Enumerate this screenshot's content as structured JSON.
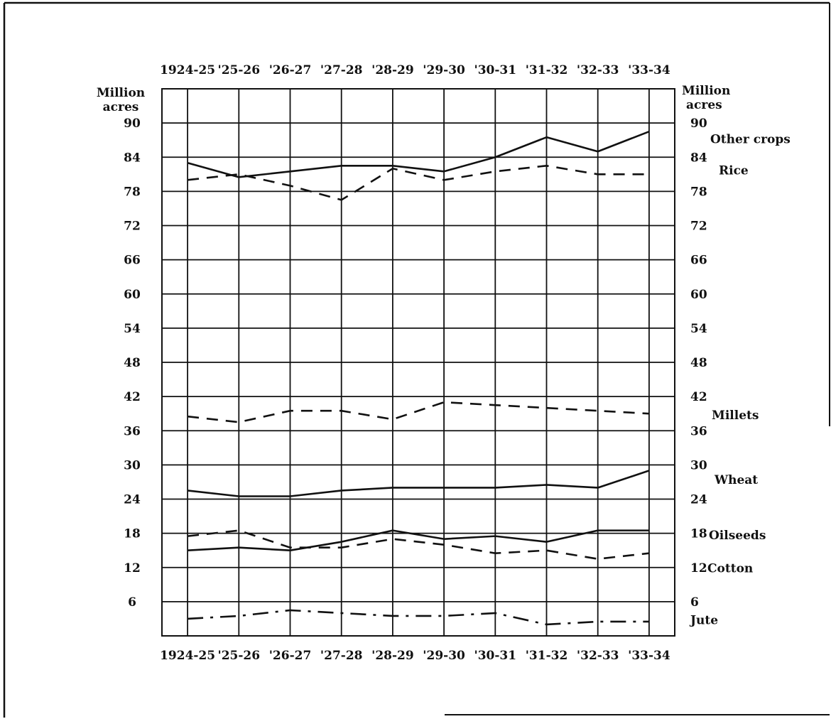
{
  "chart_data": {
    "type": "line",
    "title": "",
    "categories_top": [
      "1924-25",
      "'25-26",
      "'26-27",
      "'27-28",
      "'28-29",
      "'29-30",
      "'30-31",
      "'31-32",
      "'32-33",
      "'33-34"
    ],
    "categories_bottom": [
      "1924-25",
      "'25-26",
      "'26-27",
      "'27-28",
      "'28-29",
      "'29-30",
      "'30-31",
      "'31-32",
      "'32-33",
      "'33-34"
    ],
    "ylabel_left": [
      "Million",
      "acres"
    ],
    "ylabel_right": [
      "Million",
      "acres"
    ],
    "ylim": [
      0,
      96
    ],
    "yticks": [
      6,
      12,
      18,
      24,
      30,
      36,
      42,
      48,
      54,
      60,
      66,
      72,
      78,
      84,
      90
    ],
    "grid": true,
    "series": [
      {
        "name": "Other crops",
        "style": "solid",
        "values": [
          83,
          80.5,
          81.5,
          82.5,
          82.5,
          81.5,
          84,
          87.5,
          85,
          88.5
        ]
      },
      {
        "name": "Rice",
        "style": "dashed",
        "values": [
          80,
          81,
          79,
          76.5,
          82,
          80,
          81.5,
          82.5,
          81,
          81
        ]
      },
      {
        "name": "Millets",
        "style": "dashed",
        "values": [
          38.5,
          37.5,
          39.5,
          39.5,
          38,
          41,
          40.5,
          40,
          39.5,
          39
        ]
      },
      {
        "name": "Wheat",
        "style": "solid",
        "values": [
          25.5,
          24.5,
          24.5,
          25.5,
          26,
          26,
          26,
          26.5,
          26,
          29
        ]
      },
      {
        "name": "Oilseeds",
        "style": "dashed",
        "values": [
          17.5,
          18.5,
          15.5,
          15.5,
          17,
          16,
          14.5,
          15,
          13.5,
          14.5
        ]
      },
      {
        "name": "Cotton",
        "style": "solid",
        "values": [
          15,
          15.5,
          15,
          16.5,
          18.5,
          17,
          17.5,
          16.5,
          18.5,
          18.5
        ]
      },
      {
        "name": "Jute",
        "style": "dashdot",
        "values": [
          3,
          3.5,
          4.5,
          4,
          3.5,
          3.5,
          4,
          2,
          2.5,
          2.5
        ]
      }
    ]
  }
}
